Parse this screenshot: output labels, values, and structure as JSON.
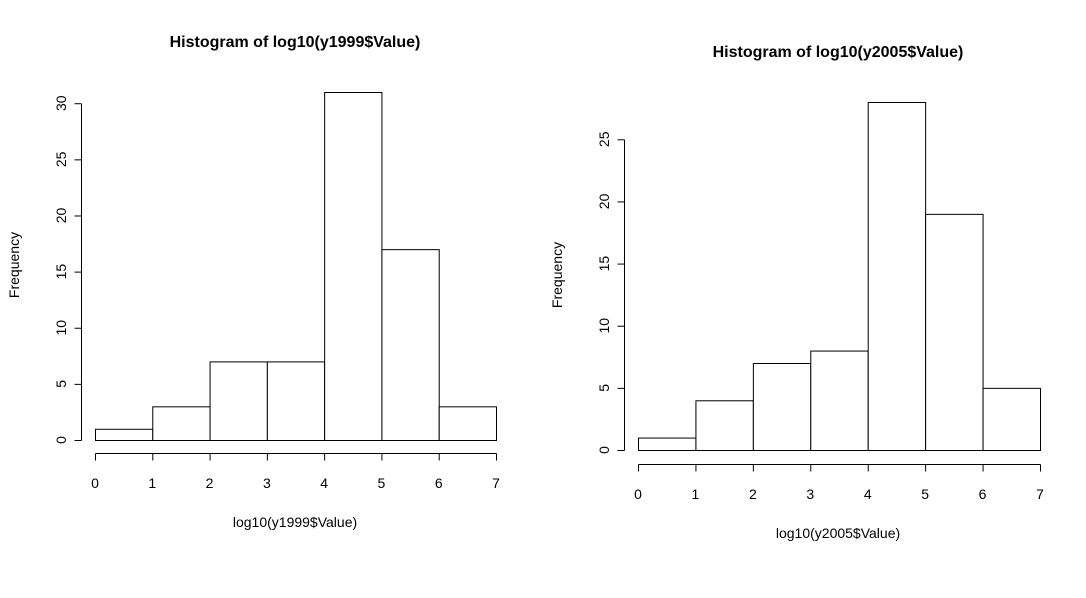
{
  "chart_data": [
    {
      "type": "bar",
      "title": "Histogram of log10(y1999$Value)",
      "xlabel": "log10(y1999$Value)",
      "ylabel": "Frequency",
      "bins": [
        [
          0,
          1
        ],
        [
          1,
          2
        ],
        [
          2,
          3
        ],
        [
          3,
          4
        ],
        [
          4,
          5
        ],
        [
          5,
          6
        ],
        [
          6,
          7
        ]
      ],
      "values": [
        1,
        3,
        7,
        7,
        31,
        17,
        3
      ],
      "xlim": [
        0,
        7
      ],
      "ylim": [
        0,
        31
      ],
      "xticks": [
        0,
        1,
        2,
        3,
        4,
        5,
        6,
        7
      ],
      "yticks": [
        0,
        5,
        10,
        15,
        20,
        25,
        30
      ],
      "grid": false
    },
    {
      "type": "bar",
      "title": "Histogram of log10(y2005$Value)",
      "xlabel": "log10(y2005$Value)",
      "ylabel": "Frequency",
      "bins": [
        [
          0,
          1
        ],
        [
          1,
          2
        ],
        [
          2,
          3
        ],
        [
          3,
          4
        ],
        [
          4,
          5
        ],
        [
          5,
          6
        ],
        [
          6,
          7
        ]
      ],
      "values": [
        1,
        4,
        7,
        8,
        28,
        19,
        5
      ],
      "xlim": [
        0,
        7
      ],
      "ylim": [
        0,
        28
      ],
      "xticks": [
        0,
        1,
        2,
        3,
        4,
        5,
        6,
        7
      ],
      "yticks": [
        0,
        5,
        10,
        15,
        20,
        25
      ],
      "grid": false
    }
  ]
}
